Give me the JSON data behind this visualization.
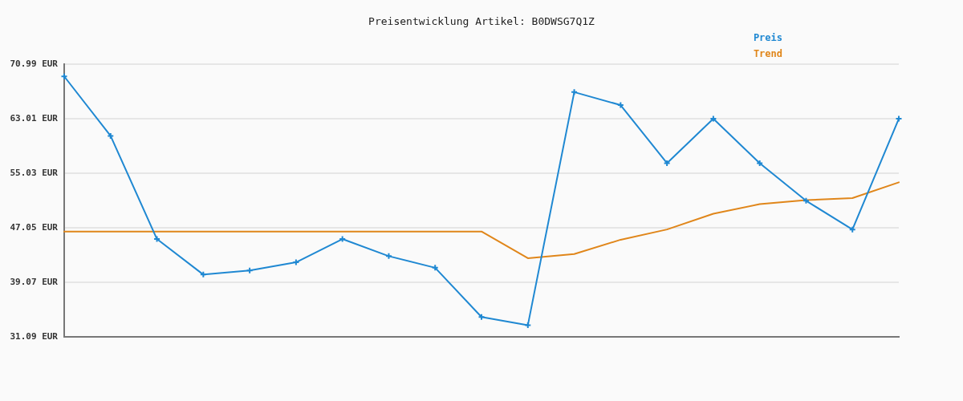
{
  "chart_data": {
    "type": "line",
    "title": "Preisentwicklung Artikel: B0DWSG7Q1Z",
    "categories": [
      null,
      null,
      null,
      null,
      null,
      null,
      null,
      null,
      null,
      null,
      null,
      null,
      null,
      null,
      null,
      null,
      null,
      null,
      null
    ],
    "series": [
      {
        "name": "Preis",
        "color": "#1f88d2",
        "marker": "cross",
        "values": [
          69.2,
          60.5,
          45.4,
          40.2,
          40.8,
          42.0,
          45.4,
          42.9,
          41.2,
          34.0,
          32.8,
          66.9,
          65.0,
          56.5,
          63.0,
          56.5,
          51.0,
          46.8,
          63.0
        ]
      },
      {
        "name": "Trend",
        "color": "#e0861a",
        "marker": "none",
        "values": [
          46.5,
          46.5,
          46.5,
          46.5,
          46.5,
          46.5,
          46.5,
          46.5,
          46.5,
          46.5,
          42.6,
          43.2,
          45.3,
          46.8,
          49.1,
          50.5,
          51.1,
          51.4,
          53.7
        ]
      }
    ],
    "ylim": [
      31.09,
      70.99
    ],
    "yticks": [
      {
        "value": 31.09,
        "label": "31.09 EUR"
      },
      {
        "value": 39.07,
        "label": "39.07 EUR"
      },
      {
        "value": 47.05,
        "label": "47.05 EUR"
      },
      {
        "value": 55.03,
        "label": "55.03 EUR"
      },
      {
        "value": 63.01,
        "label": "63.01 EUR"
      },
      {
        "value": 70.99,
        "label": "70.99 EUR"
      }
    ],
    "grid": "y",
    "legend": "top right",
    "tick_labels": "y",
    "line_style": "solid"
  }
}
